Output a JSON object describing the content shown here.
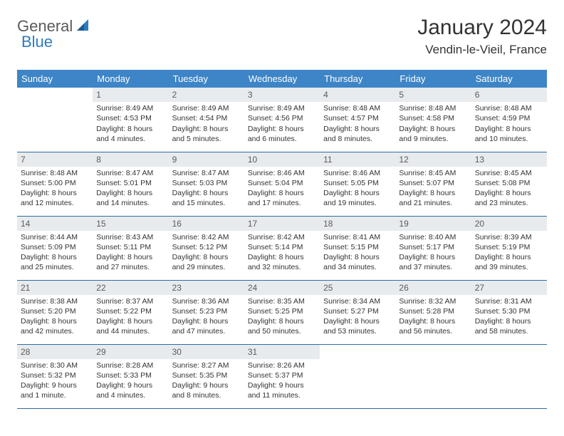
{
  "logo": {
    "text1": "General",
    "text2": "Blue"
  },
  "title": "January 2024",
  "location": "Vendin-le-Vieil, France",
  "colors": {
    "header_bg": "#3d85c6",
    "header_text": "#ffffff",
    "daynum_bg": "#e8ebee",
    "daynum_text": "#5a5a5a",
    "row_border": "#2f6da3",
    "body_text": "#333333",
    "logo_gray": "#5a5a5a",
    "logo_blue": "#2f7bbf"
  },
  "day_headers": [
    "Sunday",
    "Monday",
    "Tuesday",
    "Wednesday",
    "Thursday",
    "Friday",
    "Saturday"
  ],
  "weeks": [
    [
      {
        "n": "",
        "sr": "",
        "ss": "",
        "dl": ""
      },
      {
        "n": "1",
        "sr": "Sunrise: 8:49 AM",
        "ss": "Sunset: 4:53 PM",
        "dl": "Daylight: 8 hours and 4 minutes."
      },
      {
        "n": "2",
        "sr": "Sunrise: 8:49 AM",
        "ss": "Sunset: 4:54 PM",
        "dl": "Daylight: 8 hours and 5 minutes."
      },
      {
        "n": "3",
        "sr": "Sunrise: 8:49 AM",
        "ss": "Sunset: 4:56 PM",
        "dl": "Daylight: 8 hours and 6 minutes."
      },
      {
        "n": "4",
        "sr": "Sunrise: 8:48 AM",
        "ss": "Sunset: 4:57 PM",
        "dl": "Daylight: 8 hours and 8 minutes."
      },
      {
        "n": "5",
        "sr": "Sunrise: 8:48 AM",
        "ss": "Sunset: 4:58 PM",
        "dl": "Daylight: 8 hours and 9 minutes."
      },
      {
        "n": "6",
        "sr": "Sunrise: 8:48 AM",
        "ss": "Sunset: 4:59 PM",
        "dl": "Daylight: 8 hours and 10 minutes."
      }
    ],
    [
      {
        "n": "7",
        "sr": "Sunrise: 8:48 AM",
        "ss": "Sunset: 5:00 PM",
        "dl": "Daylight: 8 hours and 12 minutes."
      },
      {
        "n": "8",
        "sr": "Sunrise: 8:47 AM",
        "ss": "Sunset: 5:01 PM",
        "dl": "Daylight: 8 hours and 14 minutes."
      },
      {
        "n": "9",
        "sr": "Sunrise: 8:47 AM",
        "ss": "Sunset: 5:03 PM",
        "dl": "Daylight: 8 hours and 15 minutes."
      },
      {
        "n": "10",
        "sr": "Sunrise: 8:46 AM",
        "ss": "Sunset: 5:04 PM",
        "dl": "Daylight: 8 hours and 17 minutes."
      },
      {
        "n": "11",
        "sr": "Sunrise: 8:46 AM",
        "ss": "Sunset: 5:05 PM",
        "dl": "Daylight: 8 hours and 19 minutes."
      },
      {
        "n": "12",
        "sr": "Sunrise: 8:45 AM",
        "ss": "Sunset: 5:07 PM",
        "dl": "Daylight: 8 hours and 21 minutes."
      },
      {
        "n": "13",
        "sr": "Sunrise: 8:45 AM",
        "ss": "Sunset: 5:08 PM",
        "dl": "Daylight: 8 hours and 23 minutes."
      }
    ],
    [
      {
        "n": "14",
        "sr": "Sunrise: 8:44 AM",
        "ss": "Sunset: 5:09 PM",
        "dl": "Daylight: 8 hours and 25 minutes."
      },
      {
        "n": "15",
        "sr": "Sunrise: 8:43 AM",
        "ss": "Sunset: 5:11 PM",
        "dl": "Daylight: 8 hours and 27 minutes."
      },
      {
        "n": "16",
        "sr": "Sunrise: 8:42 AM",
        "ss": "Sunset: 5:12 PM",
        "dl": "Daylight: 8 hours and 29 minutes."
      },
      {
        "n": "17",
        "sr": "Sunrise: 8:42 AM",
        "ss": "Sunset: 5:14 PM",
        "dl": "Daylight: 8 hours and 32 minutes."
      },
      {
        "n": "18",
        "sr": "Sunrise: 8:41 AM",
        "ss": "Sunset: 5:15 PM",
        "dl": "Daylight: 8 hours and 34 minutes."
      },
      {
        "n": "19",
        "sr": "Sunrise: 8:40 AM",
        "ss": "Sunset: 5:17 PM",
        "dl": "Daylight: 8 hours and 37 minutes."
      },
      {
        "n": "20",
        "sr": "Sunrise: 8:39 AM",
        "ss": "Sunset: 5:19 PM",
        "dl": "Daylight: 8 hours and 39 minutes."
      }
    ],
    [
      {
        "n": "21",
        "sr": "Sunrise: 8:38 AM",
        "ss": "Sunset: 5:20 PM",
        "dl": "Daylight: 8 hours and 42 minutes."
      },
      {
        "n": "22",
        "sr": "Sunrise: 8:37 AM",
        "ss": "Sunset: 5:22 PM",
        "dl": "Daylight: 8 hours and 44 minutes."
      },
      {
        "n": "23",
        "sr": "Sunrise: 8:36 AM",
        "ss": "Sunset: 5:23 PM",
        "dl": "Daylight: 8 hours and 47 minutes."
      },
      {
        "n": "24",
        "sr": "Sunrise: 8:35 AM",
        "ss": "Sunset: 5:25 PM",
        "dl": "Daylight: 8 hours and 50 minutes."
      },
      {
        "n": "25",
        "sr": "Sunrise: 8:34 AM",
        "ss": "Sunset: 5:27 PM",
        "dl": "Daylight: 8 hours and 53 minutes."
      },
      {
        "n": "26",
        "sr": "Sunrise: 8:32 AM",
        "ss": "Sunset: 5:28 PM",
        "dl": "Daylight: 8 hours and 56 minutes."
      },
      {
        "n": "27",
        "sr": "Sunrise: 8:31 AM",
        "ss": "Sunset: 5:30 PM",
        "dl": "Daylight: 8 hours and 58 minutes."
      }
    ],
    [
      {
        "n": "28",
        "sr": "Sunrise: 8:30 AM",
        "ss": "Sunset: 5:32 PM",
        "dl": "Daylight: 9 hours and 1 minute."
      },
      {
        "n": "29",
        "sr": "Sunrise: 8:28 AM",
        "ss": "Sunset: 5:33 PM",
        "dl": "Daylight: 9 hours and 4 minutes."
      },
      {
        "n": "30",
        "sr": "Sunrise: 8:27 AM",
        "ss": "Sunset: 5:35 PM",
        "dl": "Daylight: 9 hours and 8 minutes."
      },
      {
        "n": "31",
        "sr": "Sunrise: 8:26 AM",
        "ss": "Sunset: 5:37 PM",
        "dl": "Daylight: 9 hours and 11 minutes."
      },
      {
        "n": "",
        "sr": "",
        "ss": "",
        "dl": ""
      },
      {
        "n": "",
        "sr": "",
        "ss": "",
        "dl": ""
      },
      {
        "n": "",
        "sr": "",
        "ss": "",
        "dl": ""
      }
    ]
  ]
}
